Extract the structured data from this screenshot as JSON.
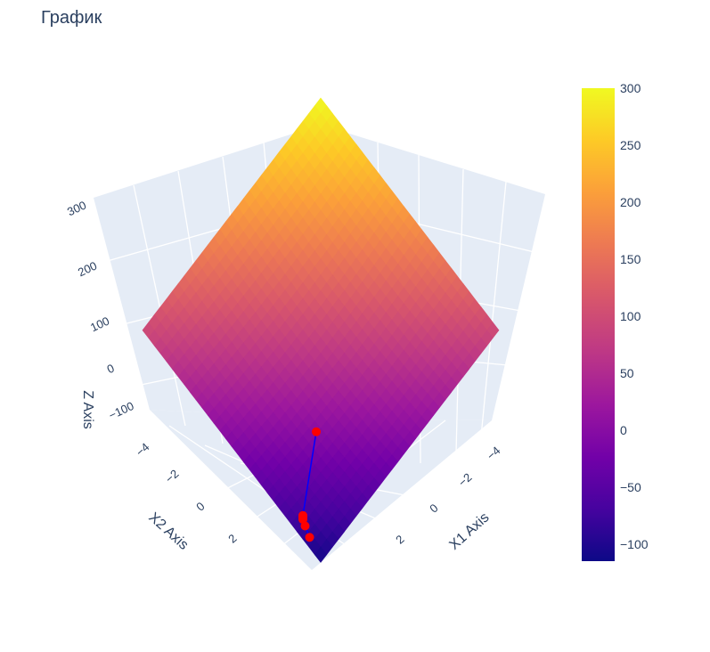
{
  "chart_data": {
    "type": "surface",
    "title": "График",
    "xlabel": "X1 Axis",
    "ylabel": "X2 Axis",
    "zlabel": "Z Axis",
    "x_ticks": [
      "−4",
      "−2",
      "0",
      "2"
    ],
    "y_ticks": [
      "−4",
      "−2",
      "0",
      "2"
    ],
    "z_ticks": [
      "−100",
      "0",
      "100",
      "200",
      "300"
    ],
    "x_range": [
      -5,
      3
    ],
    "y_range": [
      -5,
      3
    ],
    "z_range": [
      -120,
      300
    ],
    "colorscale": [
      "#0d0887",
      "#46039f",
      "#7201a8",
      "#9c179e",
      "#bd3786",
      "#d8576b",
      "#ed7953",
      "#fb9f3a",
      "#fdca26",
      "#f0f921"
    ],
    "colorbar": {
      "ticks": [
        {
          "value": 300,
          "label": "300"
        },
        {
          "value": 250,
          "label": "250"
        },
        {
          "value": 200,
          "label": "200"
        },
        {
          "value": 150,
          "label": "150"
        },
        {
          "value": 100,
          "label": "100"
        },
        {
          "value": 50,
          "label": "50"
        },
        {
          "value": 0,
          "label": "0"
        },
        {
          "value": -50,
          "label": "−50"
        },
        {
          "value": -100,
          "label": "−100"
        }
      ],
      "min": -115,
      "max": 300
    },
    "surface_corner_values": {
      "x1_min_x2_min": 300,
      "x1_max_x2_min": 95,
      "x1_min_x2_max": 95,
      "x1_max_x2_max": -110
    },
    "trajectory": {
      "line_color": "#0000ff",
      "marker_color": "#ff0000",
      "points": [
        {
          "x1": -3.6,
          "x2": -3.4,
          "z": -100
        },
        {
          "x1": -0.2,
          "x2": 0.6,
          "z": -118
        },
        {
          "x1": -0.1,
          "x2": 0.7,
          "z": -118
        },
        {
          "x1": 0.0,
          "x2": 0.8,
          "z": -118
        },
        {
          "x1": 0.4,
          "x2": 1.1,
          "z": -118
        },
        {
          "x1": 1.1,
          "x2": 1.6,
          "z": -118
        }
      ]
    }
  }
}
